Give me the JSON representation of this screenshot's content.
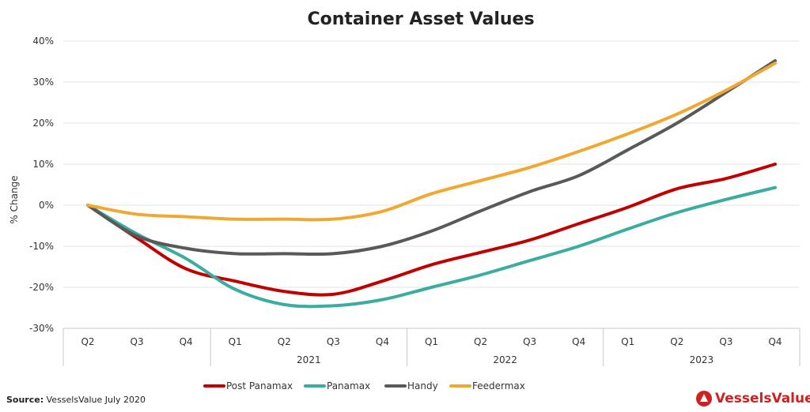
{
  "chart_data": {
    "type": "line",
    "title": "Container Asset Values",
    "ylabel": "% Change",
    "ylim": [
      -30,
      40
    ],
    "yticks": [
      "-30%",
      "-20%",
      "-10%",
      "0%",
      "10%",
      "20%",
      "30%",
      "40%"
    ],
    "grid": true,
    "categories": [
      "Q2",
      "Q3",
      "Q4",
      "Q1",
      "Q2",
      "Q3",
      "Q4",
      "Q1",
      "Q2",
      "Q3",
      "Q4",
      "Q1",
      "Q2",
      "Q3",
      "Q4"
    ],
    "year_groups": [
      {
        "label": "",
        "from": 0,
        "to": 2
      },
      {
        "label": "2021",
        "from": 3,
        "to": 6
      },
      {
        "label": "2022",
        "from": 7,
        "to": 10
      },
      {
        "label": "2023",
        "from": 11,
        "to": 14
      }
    ],
    "series": [
      {
        "name": "Post Panamax",
        "color": "#c00000",
        "values": [
          0,
          -8,
          -15.5,
          -18.5,
          -21,
          -21.7,
          -18.5,
          -14.5,
          -11.5,
          -8.5,
          -4.5,
          -0.5,
          4,
          6.5,
          10
        ]
      },
      {
        "name": "Panamax",
        "color": "#3aada0",
        "values": [
          0,
          -7,
          -13,
          -20.5,
          -24.2,
          -24.5,
          -23,
          -20,
          -17,
          -13.5,
          -10,
          -5.8,
          -1.8,
          1.4,
          4.3
        ]
      },
      {
        "name": "Handy",
        "color": "#595959",
        "values": [
          0,
          -7.5,
          -10.5,
          -11.8,
          -11.8,
          -11.8,
          -10,
          -6.3,
          -1.4,
          3.3,
          7.2,
          13.5,
          20,
          27.5,
          35.2
        ]
      },
      {
        "name": "Feedermax",
        "color": "#f0a830",
        "values": [
          0,
          -2.2,
          -2.8,
          -3.4,
          -3.4,
          -3.4,
          -1.5,
          2.8,
          6,
          9.2,
          13.1,
          17.4,
          22.2,
          28,
          34.6
        ]
      }
    ],
    "legend_position": "bottom"
  },
  "source_label": "Source:",
  "source_text": "VesselsValue July 2020",
  "logo_text": "VesselsValue"
}
